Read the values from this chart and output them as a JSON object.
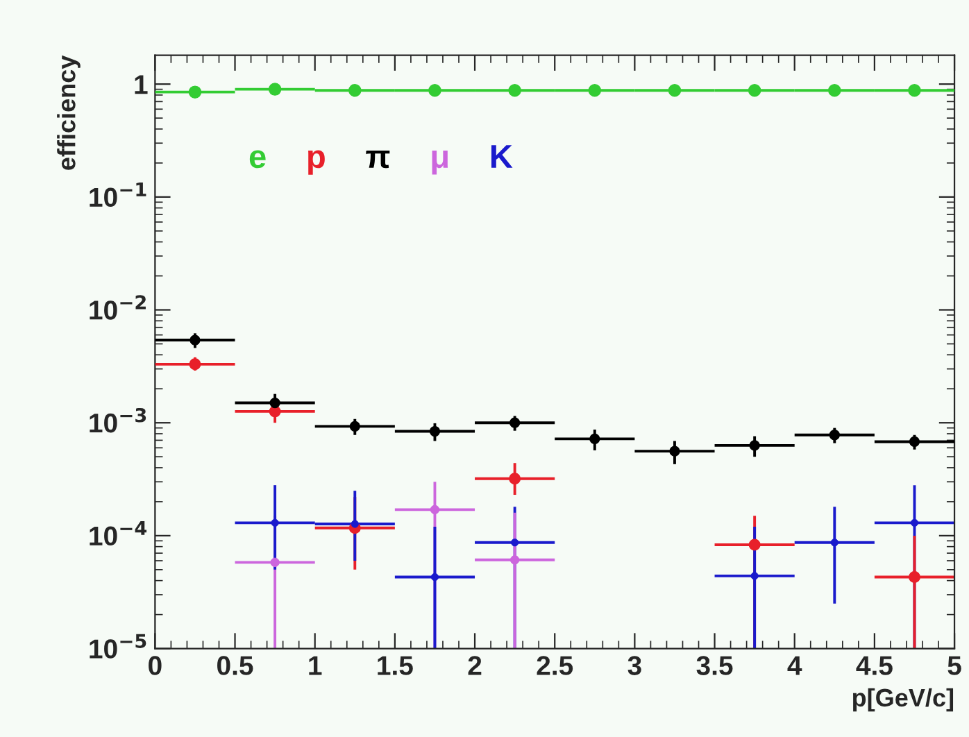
{
  "chart_data": {
    "type": "scatter",
    "xlabel": "p[GeV/c]",
    "ylabel": "efficiency",
    "log": "y",
    "marker": "circle",
    "legend": "top left",
    "grid": false,
    "xlim": [
      0,
      5
    ],
    "xticks": [
      0,
      0.5,
      1,
      1.5,
      2,
      2.5,
      3,
      3.5,
      4,
      4.5,
      5
    ],
    "ylim": [
      1e-05,
      1.8
    ],
    "yticks": [
      {
        "value": 1e-05,
        "label": "10$^{−5}$"
      },
      {
        "value": 0.0001,
        "label": "10$^{−4}$"
      },
      {
        "value": 0.001,
        "label": "10$^{−3}$"
      },
      {
        "value": 0.01,
        "label": "10$^{−2}$"
      },
      {
        "value": 0.1,
        "label": "10$^{−1}$"
      },
      1
    ],
    "series": [
      {
        "name": "e",
        "color": "#33cc33",
        "x": [
          0.25,
          0.75,
          1.25,
          1.75,
          2.25,
          2.75,
          3.25,
          3.75,
          4.25,
          4.75
        ],
        "values": [
          0.85,
          0.9,
          0.88,
          0.88,
          0.88,
          0.88,
          0.88,
          0.88,
          0.88,
          0.88
        ],
        "xerrors": [
          0.25,
          0.25,
          0.25,
          0.25,
          0.25,
          0.25,
          0.25,
          0.25,
          0.25,
          0.25
        ]
      },
      {
        "name": "p",
        "color": "#e8202a",
        "x": [
          0.25,
          0.75,
          1.25,
          2.25,
          3.75,
          4.75
        ],
        "values": [
          0.0033,
          0.00126,
          0.000117,
          0.00032,
          8.3e-05,
          4.3e-05
        ],
        "xerrors": [
          0.25,
          0.25,
          0.25,
          0.25,
          0.25,
          0.25
        ],
        "errors": [
          [
            0.0029,
            0.0038
          ],
          [
            0.001,
            0.0016
          ],
          [
            5e-05,
            0.00022
          ],
          [
            0.00023,
            0.00044
          ],
          [
            1e-05,
            0.00015
          ],
          [
            1e-05,
            0.0001
          ]
        ]
      },
      {
        "name": "π",
        "color": "#000000",
        "x": [
          0.25,
          0.75,
          1.25,
          1.75,
          2.25,
          2.75,
          3.25,
          3.75,
          4.25,
          4.75
        ],
        "values": [
          0.0054,
          0.0015,
          0.00093,
          0.00084,
          0.001,
          0.00072,
          0.00056,
          0.00063,
          0.00078,
          0.00068
        ],
        "xerrors": [
          0.25,
          0.25,
          0.25,
          0.25,
          0.25,
          0.25,
          0.25,
          0.25,
          0.25,
          0.25
        ],
        "errors": [
          0.0008,
          0.0003,
          0.00015,
          0.00015,
          0.00015,
          0.00015,
          0.00013,
          0.00013,
          0.00012,
          0.0001
        ]
      },
      {
        "name": "μ",
        "color": "#cc66dd",
        "x": [
          0.75,
          1.75,
          2.25
        ],
        "values": [
          5.8e-05,
          0.00017,
          6.1e-05
        ],
        "xerrors": [
          0.25,
          0.25,
          0.25
        ],
        "errors": [
          [
            1e-05,
            0.00015
          ],
          [
            1e-05,
            0.0003
          ],
          [
            1e-05,
            0.00016
          ]
        ]
      },
      {
        "name": "K",
        "color": "#1a1acc",
        "x": [
          0.75,
          1.25,
          1.75,
          2.25,
          3.75,
          4.25,
          4.75
        ],
        "values": [
          0.00013,
          0.000127,
          4.3e-05,
          8.7e-05,
          4.4e-05,
          8.7e-05,
          0.00013
        ],
        "xerrors": [
          0.25,
          0.25,
          0.25,
          0.25,
          0.25,
          0.25,
          0.25
        ],
        "errors": [
          [
            5e-05,
            0.00028
          ],
          [
            6e-05,
            0.00025
          ],
          [
            1e-05,
            0.00012
          ],
          [
            1e-05,
            0.00018
          ],
          [
            1e-05,
            0.00012
          ],
          [
            2.5e-05,
            0.00018
          ],
          [
            1e-05,
            0.00028
          ]
        ]
      }
    ]
  }
}
